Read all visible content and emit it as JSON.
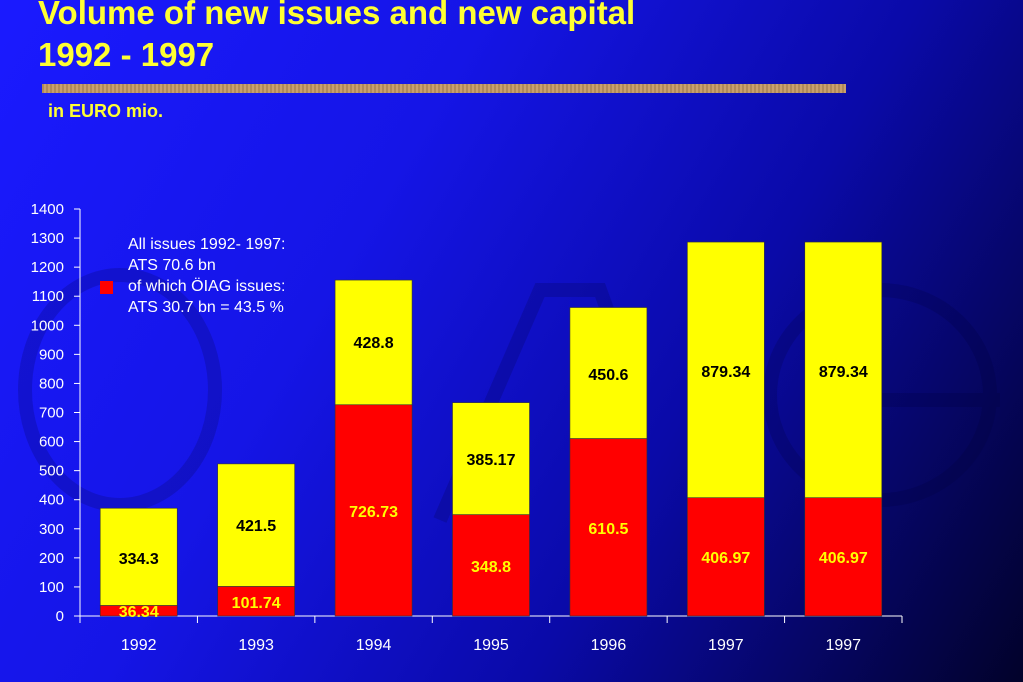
{
  "header": {
    "title_line1": "Volume of new issues and new capital",
    "title_line2": "1992 - 1997",
    "unit": "in EURO mio."
  },
  "legend": {
    "line1": "All issues 1992- 1997:",
    "line2": "ATS 70.6 bn",
    "line3": "of which ÖIAG issues:",
    "line4": "ATS 30.7 bn = 43.5 %",
    "swatch_color": "#ff0000"
  },
  "chart_data": {
    "type": "bar",
    "stacked": true,
    "categories": [
      "1992",
      "1993",
      "1994",
      "1995",
      "1996",
      "1997",
      "1997"
    ],
    "series": [
      {
        "values": [
          36.34,
          101.74,
          726.73,
          348.8,
          610.5,
          406.97,
          406.97
        ],
        "color": "#ff0000",
        "label_color": "#ffff00"
      },
      {
        "values": [
          334.3,
          421.5,
          428.8,
          385.17,
          450.6,
          879.34,
          879.34
        ],
        "color": "#ffff00",
        "label_color": "#000000"
      }
    ],
    "ylim": [
      0,
      1400
    ],
    "yticks": [
      0,
      100,
      200,
      300,
      400,
      500,
      600,
      700,
      800,
      900,
      1000,
      1100,
      1200,
      1300,
      1400
    ],
    "grid": false
  }
}
